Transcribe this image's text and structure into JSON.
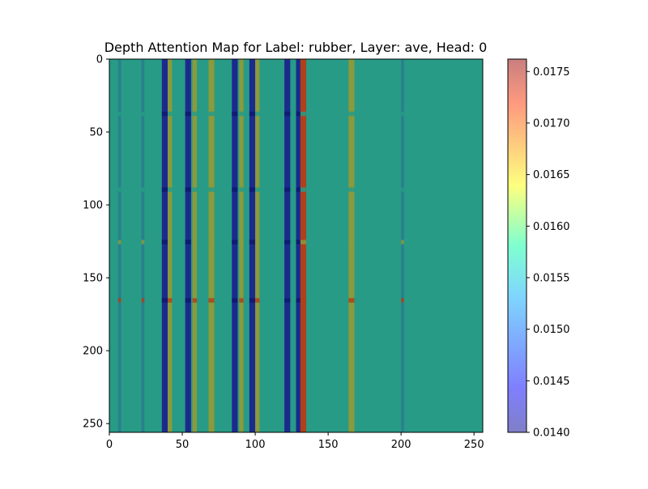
{
  "chart_data": {
    "type": "heatmap",
    "title": "Depth Attention Map for Label: rubber, Layer: ave, Head: 0",
    "xlabel": "",
    "ylabel": "",
    "xlim": [
      0,
      256
    ],
    "ylim": [
      256,
      0
    ],
    "x_ticks": [
      0,
      50,
      100,
      150,
      200,
      250
    ],
    "y_ticks": [
      0,
      50,
      100,
      150,
      200,
      250
    ],
    "colorbar": {
      "vmin": 0.014,
      "vmax": 0.01762,
      "ticks": [
        0.014,
        0.0145,
        0.015,
        0.0155,
        0.016,
        0.0165,
        0.017,
        0.0175
      ],
      "tick_labels": [
        "0.0140",
        "0.0145",
        "0.0150",
        "0.0155",
        "0.0160",
        "0.0165",
        "0.0170",
        "0.0175"
      ]
    },
    "colors": {
      "base": "#279b86",
      "low": "#1c2a8e",
      "high": "#b0401a"
    },
    "base_value": 0.0157,
    "column_bands": [
      {
        "x0": 36,
        "x1": 40,
        "value": 0.0142
      },
      {
        "x0": 40,
        "x1": 43,
        "value": 0.0163
      },
      {
        "x0": 52,
        "x1": 56,
        "value": 0.0142
      },
      {
        "x0": 57,
        "x1": 60,
        "value": 0.0163
      },
      {
        "x0": 68,
        "x1": 72,
        "value": 0.0162
      },
      {
        "x0": 84,
        "x1": 88,
        "value": 0.0143
      },
      {
        "x0": 89,
        "x1": 92,
        "value": 0.0162
      },
      {
        "x0": 96,
        "x1": 100,
        "value": 0.0141
      },
      {
        "x0": 100,
        "x1": 103,
        "value": 0.0164
      },
      {
        "x0": 120,
        "x1": 124,
        "value": 0.0142
      },
      {
        "x0": 128,
        "x1": 131,
        "value": 0.0141
      },
      {
        "x0": 131,
        "x1": 135,
        "value": 0.0174
      },
      {
        "x0": 164,
        "x1": 168,
        "value": 0.0163
      },
      {
        "x0": 200,
        "x1": 202,
        "value": 0.0155
      },
      {
        "x0": 22,
        "x1": 24,
        "value": 0.0156
      },
      {
        "x0": 6,
        "x1": 8,
        "value": 0.0156
      }
    ],
    "row_bands": [
      {
        "y0": 36,
        "y1": 39,
        "value": 0.0158
      },
      {
        "y0": 88,
        "y1": 91,
        "value": 0.0158
      },
      {
        "y0": 124,
        "y1": 127,
        "value": 0.017
      },
      {
        "y0": 164,
        "y1": 167,
        "value": 0.0172
      }
    ]
  }
}
